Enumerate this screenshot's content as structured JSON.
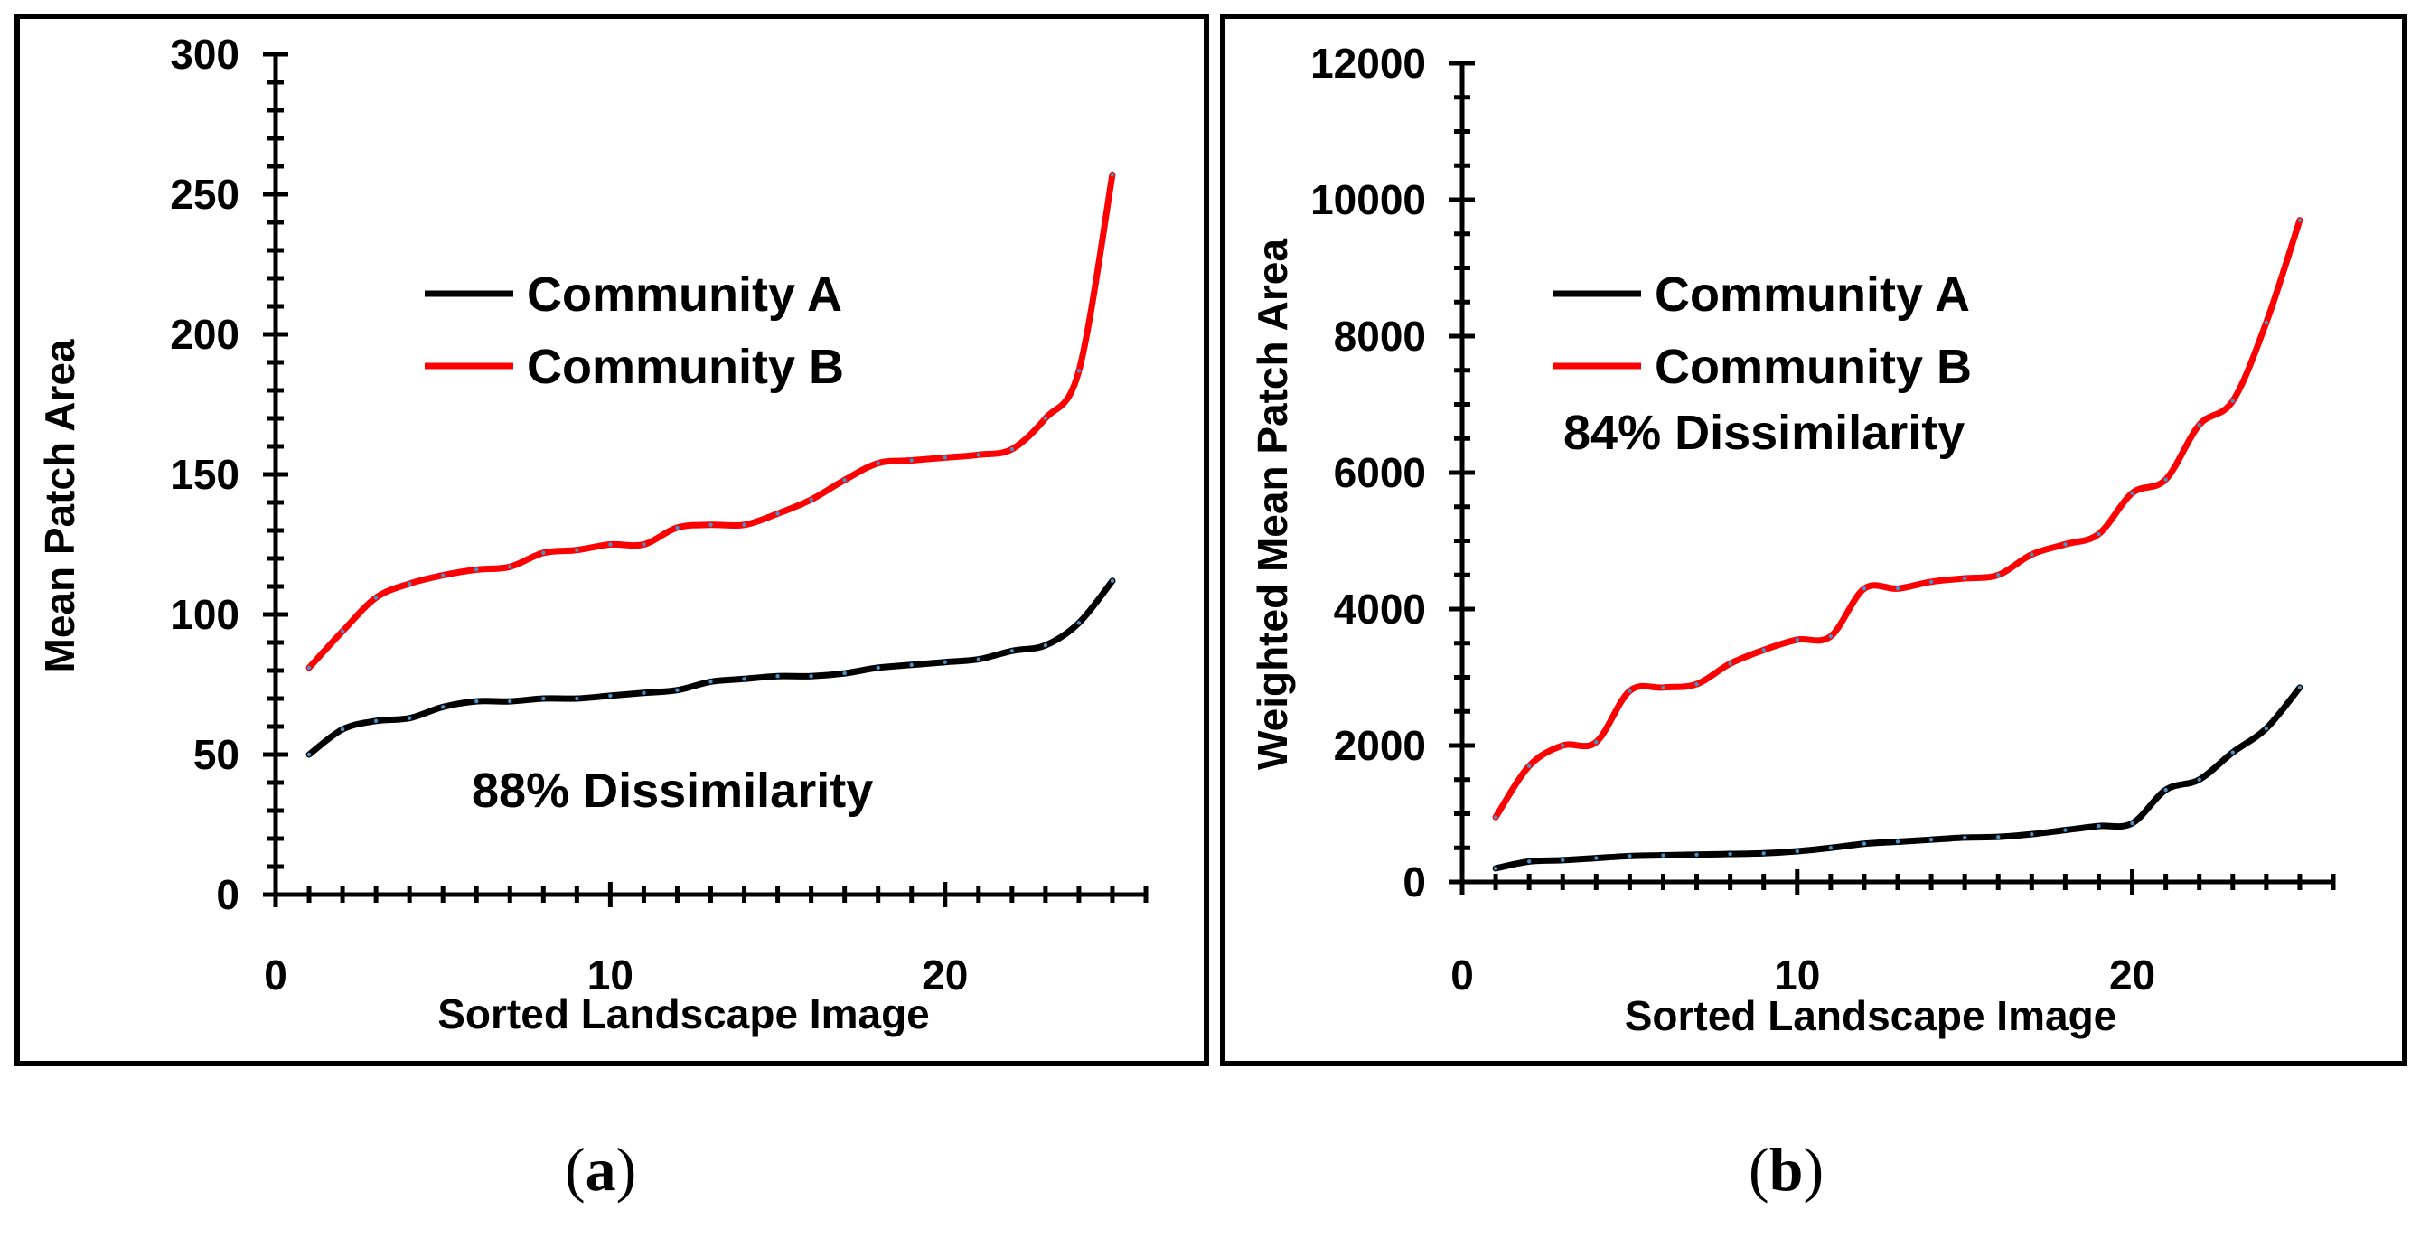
{
  "chart_data": [
    {
      "type": "line",
      "panel_label": "a",
      "xlabel": "Sorted Landscape Image",
      "ylabel": "Mean Patch Area",
      "xlim": [
        0,
        26
      ],
      "ylim": [
        0,
        300
      ],
      "xticks": [
        0,
        10,
        20
      ],
      "yticks": [
        0,
        50,
        100,
        150,
        200,
        250,
        300
      ],
      "yminor_step": 10,
      "xminor_step": 1,
      "legend_position": "upper-left",
      "annotation": "88% Dissimilarity",
      "x": [
        1,
        2,
        3,
        4,
        5,
        6,
        7,
        8,
        9,
        10,
        11,
        12,
        13,
        14,
        15,
        16,
        17,
        18,
        19,
        20,
        21,
        22,
        23,
        24,
        25
      ],
      "series": [
        {
          "name": "Community A",
          "color": "#000000",
          "values": [
            50,
            59,
            62,
            63,
            67,
            69,
            69,
            70,
            70,
            71,
            72,
            73,
            76,
            77,
            78,
            78,
            79,
            81,
            82,
            83,
            84,
            87,
            89,
            97,
            112
          ]
        },
        {
          "name": "Community B",
          "color": "#ff0000",
          "values": [
            81,
            94,
            106,
            111,
            114,
            116,
            117,
            122,
            123,
            125,
            125,
            131,
            132,
            132,
            136,
            141,
            148,
            154,
            155,
            156,
            157,
            159,
            170,
            187,
            257
          ]
        }
      ]
    },
    {
      "type": "line",
      "panel_label": "b",
      "xlabel": "Sorted Landscape Image",
      "ylabel": "Weighted Mean Patch Area",
      "xlim": [
        0,
        26
      ],
      "ylim": [
        0,
        12000
      ],
      "xticks": [
        0,
        10,
        20
      ],
      "yticks": [
        0,
        2000,
        4000,
        6000,
        8000,
        10000,
        12000
      ],
      "yminor_step": 500,
      "xminor_step": 1,
      "legend_position": "upper-left",
      "annotation": "84% Dissimilarity",
      "x": [
        1,
        2,
        3,
        4,
        5,
        6,
        7,
        8,
        9,
        10,
        11,
        12,
        13,
        14,
        15,
        16,
        17,
        18,
        19,
        20,
        21,
        22,
        23,
        24,
        25
      ],
      "series": [
        {
          "name": "Community A",
          "color": "#000000",
          "values": [
            200,
            300,
            320,
            350,
            380,
            390,
            400,
            410,
            420,
            450,
            500,
            560,
            590,
            620,
            650,
            660,
            700,
            760,
            820,
            860,
            1350,
            1500,
            1900,
            2250,
            2850
          ]
        },
        {
          "name": "Community B",
          "color": "#ff0000",
          "values": [
            950,
            1700,
            2000,
            2050,
            2800,
            2850,
            2900,
            3200,
            3400,
            3550,
            3600,
            4300,
            4300,
            4400,
            4450,
            4500,
            4800,
            4950,
            5100,
            5700,
            5900,
            6700,
            7050,
            8200,
            9700
          ]
        }
      ]
    }
  ]
}
